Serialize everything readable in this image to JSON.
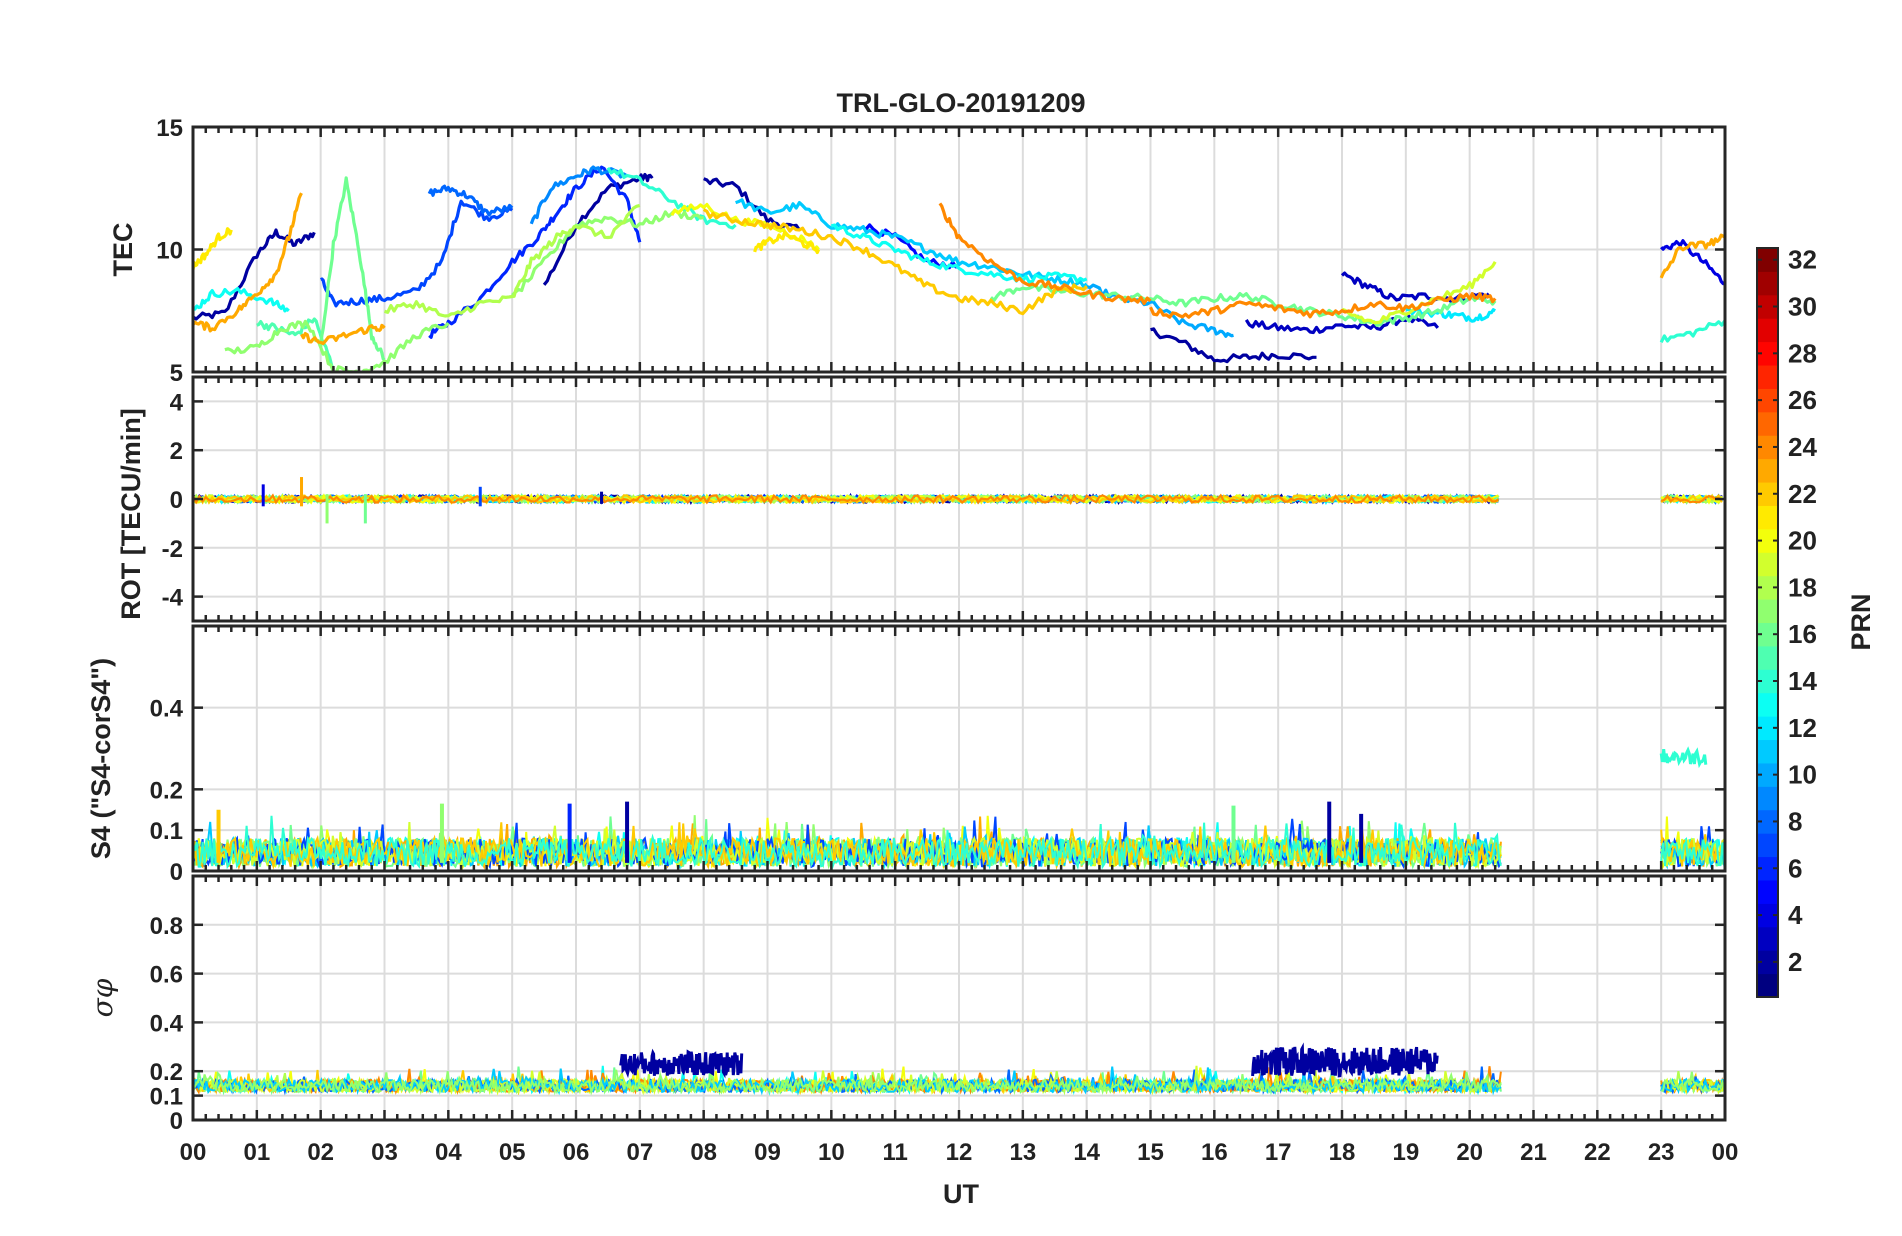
{
  "chart_data": {
    "type": "line",
    "title": "TRL-GLO-20191209",
    "xlabel": "UT",
    "x_ticks": [
      "00",
      "01",
      "02",
      "03",
      "04",
      "05",
      "06",
      "07",
      "08",
      "09",
      "10",
      "11",
      "12",
      "13",
      "14",
      "15",
      "16",
      "17",
      "18",
      "19",
      "20",
      "21",
      "22",
      "23",
      "00"
    ],
    "xlim": [
      0,
      24
    ],
    "panels": [
      {
        "name": "tec",
        "ylabel": "TEC",
        "ylim": [
          5,
          15
        ],
        "yticks": [
          {
            "v": 5,
            "label": "5"
          },
          {
            "v": 10,
            "label": "10"
          },
          {
            "v": 15,
            "label": "15"
          }
        ],
        "series": [
          {
            "prn": 2,
            "x": [
              0.0,
              0.5,
              1.0,
              1.3,
              1.6,
              1.9
            ],
            "y": [
              7.2,
              7.4,
              9.8,
              10.7,
              10.2,
              10.7
            ]
          },
          {
            "prn": 2,
            "x": [
              5.5,
              6.0,
              6.5,
              7.0,
              7.2
            ],
            "y": [
              8.5,
              11.0,
              12.5,
              12.9,
              13.0
            ]
          },
          {
            "prn": 2,
            "x": [
              8.0,
              8.5,
              9.0,
              9.5
            ],
            "y": [
              12.8,
              12.6,
              11.2,
              10.8
            ]
          },
          {
            "prn": 2,
            "x": [
              15.0,
              15.5,
              16.0,
              16.5,
              17.0,
              17.6
            ],
            "y": [
              6.7,
              6.2,
              5.5,
              5.6,
              5.7,
              5.6
            ]
          },
          {
            "prn": 3,
            "x": [
              16.5,
              17.0,
              17.5,
              18.0,
              18.5,
              19.0,
              19.5
            ],
            "y": [
              7.0,
              6.8,
              6.7,
              6.9,
              6.8,
              7.2,
              6.8
            ]
          },
          {
            "prn": 3,
            "x": [
              18.0,
              18.4,
              18.8,
              19.3,
              19.8,
              20.3
            ],
            "y": [
              9.0,
              8.5,
              8.0,
              8.1,
              8.0,
              8.2
            ]
          },
          {
            "prn": 4,
            "x": [
              23.0,
              23.3,
              23.7,
              24.0
            ],
            "y": [
              10.0,
              10.3,
              9.4,
              8.6
            ]
          },
          {
            "prn": 5,
            "x": [
              10.5,
              11.0,
              11.5,
              12.0
            ],
            "y": [
              11.0,
              10.5,
              9.5,
              9.3
            ]
          },
          {
            "prn": 6,
            "x": [
              3.7,
              4.0,
              4.5,
              5.0,
              5.4,
              5.7,
              6.0,
              6.4,
              6.8,
              7.0
            ],
            "y": [
              6.5,
              7.0,
              8.0,
              9.5,
              10.5,
              11.5,
              12.5,
              13.4,
              12.0,
              10.3
            ]
          },
          {
            "prn": 7,
            "x": [
              2.0,
              2.2,
              2.6,
              3.0,
              3.5,
              3.9,
              4.2,
              4.6,
              5.0
            ],
            "y": [
              8.8,
              7.8,
              7.9,
              8.0,
              8.3,
              9.5,
              12.0,
              11.3,
              11.6
            ]
          },
          {
            "prn": 8,
            "x": [
              3.7,
              4.0,
              4.3,
              4.6,
              5.0
            ],
            "y": [
              12.3,
              12.5,
              12.2,
              11.5,
              11.7
            ]
          },
          {
            "prn": 9,
            "x": [
              5.3,
              5.6,
              6.0,
              6.3,
              6.8
            ],
            "y": [
              11.0,
              12.5,
              13.0,
              13.3,
              13.0
            ]
          },
          {
            "prn": 10,
            "x": [
              14.0,
              14.5,
              15.0,
              15.5,
              16.0,
              16.3
            ],
            "y": [
              8.5,
              8.0,
              7.8,
              7.0,
              6.7,
              6.5
            ]
          },
          {
            "prn": 11,
            "x": [
              8.5,
              9.0,
              9.5,
              10.0,
              10.5,
              11.0,
              11.5,
              12.0,
              12.5,
              13.0,
              13.5,
              14.0
            ],
            "y": [
              12.0,
              11.5,
              11.8,
              11.0,
              10.8,
              10.5,
              10.0,
              9.5,
              9.3,
              9.0,
              8.8,
              8.6
            ]
          },
          {
            "prn": 12,
            "x": [
              19.0,
              19.5,
              19.8,
              20.1,
              20.4
            ],
            "y": [
              7.5,
              7.4,
              7.3,
              7.2,
              7.5
            ]
          },
          {
            "prn": 13,
            "x": [
              0.0,
              0.3,
              0.7,
              1.2,
              1.5
            ],
            "y": [
              7.5,
              8.2,
              8.3,
              7.9,
              7.5
            ]
          },
          {
            "prn": 13,
            "x": [
              10.0,
              10.5,
              11.0,
              11.5,
              12.0,
              12.5,
              13.0,
              13.5,
              14.0
            ],
            "y": [
              11.0,
              10.5,
              10.0,
              9.5,
              9.2,
              9.0,
              8.8,
              8.9,
              8.8
            ]
          },
          {
            "prn": 14,
            "x": [
              6.5,
              7.0,
              7.5,
              8.0,
              8.5
            ],
            "y": [
              13.3,
              12.8,
              12.0,
              11.2,
              11.0
            ]
          },
          {
            "prn": 14,
            "x": [
              23.0,
              23.5,
              24.0
            ],
            "y": [
              6.3,
              6.6,
              7.1
            ]
          },
          {
            "prn": 15,
            "x": [
              1.0,
              1.3,
              1.6,
              1.9,
              2.2
            ],
            "y": [
              7.0,
              6.8,
              6.5,
              7.2,
              5.1
            ]
          },
          {
            "prn": 16,
            "x": [
              2.0,
              2.2,
              2.4,
              2.6,
              2.8,
              3.0
            ],
            "y": [
              6.0,
              10.2,
              12.8,
              10.0,
              6.5,
              5.5
            ]
          },
          {
            "prn": 16,
            "x": [
              12.5,
              13.0,
              13.5,
              14.0,
              14.5,
              15.0,
              15.5,
              16.0,
              16.5,
              17.0,
              17.5,
              18.0,
              18.5,
              19.0,
              19.5,
              20.0,
              20.4
            ],
            "y": [
              8.0,
              8.5,
              8.3,
              8.2,
              8.1,
              8.0,
              7.8,
              8.0,
              8.1,
              7.8,
              7.5,
              7.3,
              7.0,
              7.2,
              7.5,
              8.0,
              7.9
            ]
          },
          {
            "prn": 17,
            "x": [
              0.5,
              1.0,
              1.4,
              1.8,
              2.2,
              2.6,
              3.0,
              3.5,
              4.0
            ],
            "y": [
              5.8,
              6.0,
              6.8,
              7.0,
              5.1,
              5.0,
              5.4,
              6.5,
              7.0
            ]
          },
          {
            "prn": 17,
            "x": [
              5.0,
              5.5,
              6.0,
              6.5,
              7.0,
              7.5,
              8.0
            ],
            "y": [
              8.0,
              9.5,
              11.0,
              11.3,
              11.0,
              11.5,
              11.3
            ]
          },
          {
            "prn": 18,
            "x": [
              3.0,
              3.5,
              4.0,
              4.5,
              5.0,
              5.3,
              5.7,
              6.0,
              6.5,
              7.0
            ],
            "y": [
              7.5,
              7.8,
              7.2,
              7.8,
              8.0,
              9.5,
              10.5,
              11.0,
              10.5,
              11.8
            ]
          },
          {
            "prn": 19,
            "x": [
              18.0,
              18.5,
              19.0,
              19.5,
              20.0,
              20.4
            ],
            "y": [
              7.5,
              7.0,
              7.5,
              8.0,
              8.5,
              9.5
            ]
          },
          {
            "prn": 20,
            "x": [
              7.5,
              8.0,
              8.5,
              9.0,
              9.5,
              9.8
            ],
            "y": [
              11.5,
              11.8,
              11.2,
              11.0,
              10.5,
              10.0
            ]
          },
          {
            "prn": 21,
            "x": [
              0.0,
              0.2,
              0.4,
              0.6
            ],
            "y": [
              9.3,
              9.8,
              10.5,
              10.8
            ]
          },
          {
            "prn": 21,
            "x": [
              8.8,
              9.0,
              9.3,
              9.6,
              9.8
            ],
            "y": [
              10.0,
              10.3,
              10.6,
              10.2,
              10.0
            ]
          },
          {
            "prn": 22,
            "x": [
              8.0,
              8.5,
              9.0,
              9.5,
              10.0,
              10.5,
              11.0,
              11.5,
              12.0,
              12.5,
              13.0,
              13.5,
              14.0
            ],
            "y": [
              11.5,
              11.2,
              11.0,
              10.8,
              10.5,
              10.0,
              9.3,
              8.5,
              8.0,
              7.8,
              7.5,
              8.3,
              8.5
            ]
          },
          {
            "prn": 23,
            "x": [
              0.0,
              0.3,
              0.7,
              1.0,
              1.3,
              1.5,
              1.7
            ],
            "y": [
              7.0,
              6.8,
              7.5,
              8.2,
              9.0,
              10.5,
              12.3
            ]
          },
          {
            "prn": 23,
            "x": [
              1.7,
              2.0,
              2.4,
              2.8,
              3.0
            ],
            "y": [
              6.5,
              6.2,
              6.5,
              6.8,
              6.8
            ]
          },
          {
            "prn": 23,
            "x": [
              23.0,
              23.3,
              23.7,
              24.0
            ],
            "y": [
              8.8,
              10.1,
              10.2,
              10.5
            ]
          },
          {
            "prn": 24,
            "x": [
              11.7,
              12.0,
              12.5,
              13.0,
              13.5,
              14.0,
              14.5,
              15.0
            ],
            "y": [
              11.8,
              10.5,
              9.5,
              8.7,
              8.5,
              8.2,
              8.0,
              7.9
            ]
          },
          {
            "prn": 24,
            "x": [
              15.0,
              15.5,
              16.0,
              16.5,
              17.0,
              17.5,
              18.0,
              18.5,
              19.0,
              19.5,
              20.0,
              20.4
            ],
            "y": [
              7.5,
              7.3,
              7.5,
              7.8,
              7.6,
              7.4,
              7.5,
              7.8,
              7.6,
              7.9,
              8.1,
              8.0
            ]
          }
        ]
      },
      {
        "name": "rot",
        "ylabel": "ROT [TECU/min]",
        "ylim": [
          -5,
          5
        ],
        "yticks": [
          {
            "v": -4,
            "label": "-4"
          },
          {
            "v": -2,
            "label": "-2"
          },
          {
            "v": 0,
            "label": "0"
          },
          {
            "v": 2,
            "label": "2"
          },
          {
            "v": 4,
            "label": "4"
          }
        ],
        "spikes": [
          {
            "prn": 16,
            "x": 2.7,
            "ymin": -1.0,
            "ymax": 0.2
          },
          {
            "prn": 17,
            "x": 2.1,
            "ymin": -1.0,
            "ymax": 0.2
          },
          {
            "prn": 23,
            "x": 1.7,
            "ymin": -0.3,
            "ymax": 0.9
          },
          {
            "prn": 4,
            "x": 1.1,
            "ymin": -0.3,
            "ymax": 0.6
          },
          {
            "prn": 7,
            "x": 4.5,
            "ymin": -0.3,
            "ymax": 0.5
          },
          {
            "prn": 2,
            "x": 6.4,
            "ymin": -0.2,
            "ymax": 0.3
          }
        ]
      },
      {
        "name": "s4",
        "ylabel": "S4 (\"S4-corS4\")",
        "ylim": [
          0,
          0.6
        ],
        "yticks": [
          {
            "v": 0,
            "label": "0"
          },
          {
            "v": 0.1,
            "label": "0.1"
          },
          {
            "v": 0.2,
            "label": "0.2"
          },
          {
            "v": 0.4,
            "label": "0.4"
          }
        ],
        "segments": [
          {
            "x0": 0,
            "x1": 20.5
          },
          {
            "x0": 23.0,
            "x1": 24.0
          }
        ],
        "patches": [
          {
            "prn": 14,
            "x0": 23.0,
            "x1": 23.7,
            "ymin": 0.26,
            "ymax": 0.3
          }
        ],
        "spikes": [
          {
            "prn": 6,
            "x": 5.9,
            "y": 0.165
          },
          {
            "prn": 2,
            "x": 6.8,
            "y": 0.17
          },
          {
            "prn": 2,
            "x": 17.8,
            "y": 0.17
          },
          {
            "prn": 2,
            "x": 18.3,
            "y": 0.14
          },
          {
            "prn": 16,
            "x": 16.3,
            "y": 0.16
          },
          {
            "prn": 17,
            "x": 3.9,
            "y": 0.165
          },
          {
            "prn": 22,
            "x": 0.4,
            "y": 0.15
          }
        ]
      },
      {
        "name": "sigma_phi",
        "ylabel": "σφ",
        "ylim": [
          0,
          1
        ],
        "yticks": [
          {
            "v": 0,
            "label": "0"
          },
          {
            "v": 0.1,
            "label": "0.1"
          },
          {
            "v": 0.2,
            "label": "0.2"
          },
          {
            "v": 0.4,
            "label": "0.4"
          },
          {
            "v": 0.6,
            "label": "0.6"
          },
          {
            "v": 0.8,
            "label": "0.8"
          }
        ],
        "segments": [
          {
            "x0": 0,
            "x1": 20.5
          },
          {
            "x0": 23.0,
            "x1": 24.0
          }
        ],
        "patches": [
          {
            "prn": 2,
            "x0": 6.7,
            "x1": 8.6,
            "ymin": 0.18,
            "ymax": 0.28
          },
          {
            "prn": 2,
            "x0": 16.6,
            "x1": 19.5,
            "ymin": 0.18,
            "ymax": 0.3
          }
        ]
      }
    ],
    "colorbar": {
      "label": "PRN",
      "range": [
        1,
        32
      ],
      "ticks": [
        2,
        4,
        6,
        8,
        10,
        12,
        14,
        16,
        18,
        20,
        22,
        24,
        26,
        28,
        30,
        32
      ],
      "colormap": "jet"
    }
  }
}
